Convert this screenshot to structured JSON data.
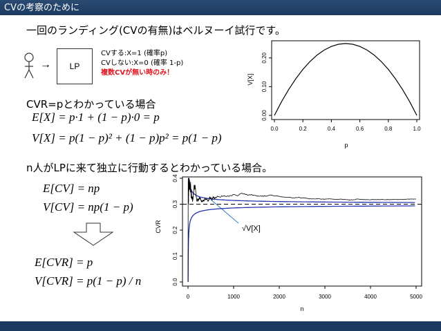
{
  "header": {
    "title": "CVの考察のために"
  },
  "intro": "一回のランディング(CVの有無)はベルヌーイ試行です。",
  "diagram": {
    "box_label": "LP",
    "arrow": "→",
    "note1": "CVする:X=1 (確率p)",
    "note2": "CVしない:X=0 (確率 1-p)",
    "note3": "複数CVが無い時のみ！"
  },
  "section1": {
    "label": "CVR=pとわかっている場合",
    "eq1": "E[X] = p·1 + (1 − p)·0 = p",
    "eq2": "V[X] = p(1 − p)² + (1 − p)p² = p(1 − p)"
  },
  "section2": {
    "label": "n人がLPに来て独立に行動するとわかっている場合。",
    "eq1": "E[CV] = np",
    "eq2": "V[CV] = np(1 − p)",
    "eq3": "E[CVR] = p",
    "eq4": "V[CVR] = p(1 − p) / n",
    "callout": "√V[X]"
  },
  "chart_data": [
    {
      "type": "line",
      "xlabel": "p",
      "ylabel": "V[X]",
      "x_ticks": [
        "0.0",
        "0.2",
        "0.4",
        "0.6",
        "0.8",
        "1.0"
      ],
      "y_ticks": [
        "0.00",
        "0.10",
        "0.20"
      ],
      "xlim": [
        0,
        1
      ],
      "ylim": [
        0,
        0.25
      ],
      "function": "y = p(1 - p)",
      "x": [
        0,
        0.05,
        0.1,
        0.15,
        0.2,
        0.25,
        0.3,
        0.35,
        0.4,
        0.45,
        0.5,
        0.55,
        0.6,
        0.65,
        0.7,
        0.75,
        0.8,
        0.85,
        0.9,
        0.95,
        1.0
      ],
      "y": [
        0,
        0.0475,
        0.09,
        0.1275,
        0.16,
        0.1875,
        0.21,
        0.2275,
        0.24,
        0.2475,
        0.25,
        0.2475,
        0.24,
        0.2275,
        0.21,
        0.1875,
        0.16,
        0.1275,
        0.09,
        0.0475,
        0
      ]
    },
    {
      "type": "line",
      "xlabel": "n",
      "ylabel": "CVR",
      "x_ticks": [
        "0",
        "1000",
        "2000",
        "3000",
        "4000",
        "5000"
      ],
      "y_ticks": [
        "0.0",
        "0.1",
        "0.2",
        "0.3",
        "0.4"
      ],
      "xlim": [
        0,
        5000
      ],
      "ylim": [
        0,
        0.4
      ],
      "p": 0.3,
      "series": [
        {
          "role": "upper-bound",
          "color": "#2433b0"
        },
        {
          "role": "lower-bound",
          "color": "#2433b0"
        },
        {
          "role": "observed",
          "color": "#000000"
        },
        {
          "role": "true-p",
          "color": "#000000"
        }
      ]
    }
  ]
}
